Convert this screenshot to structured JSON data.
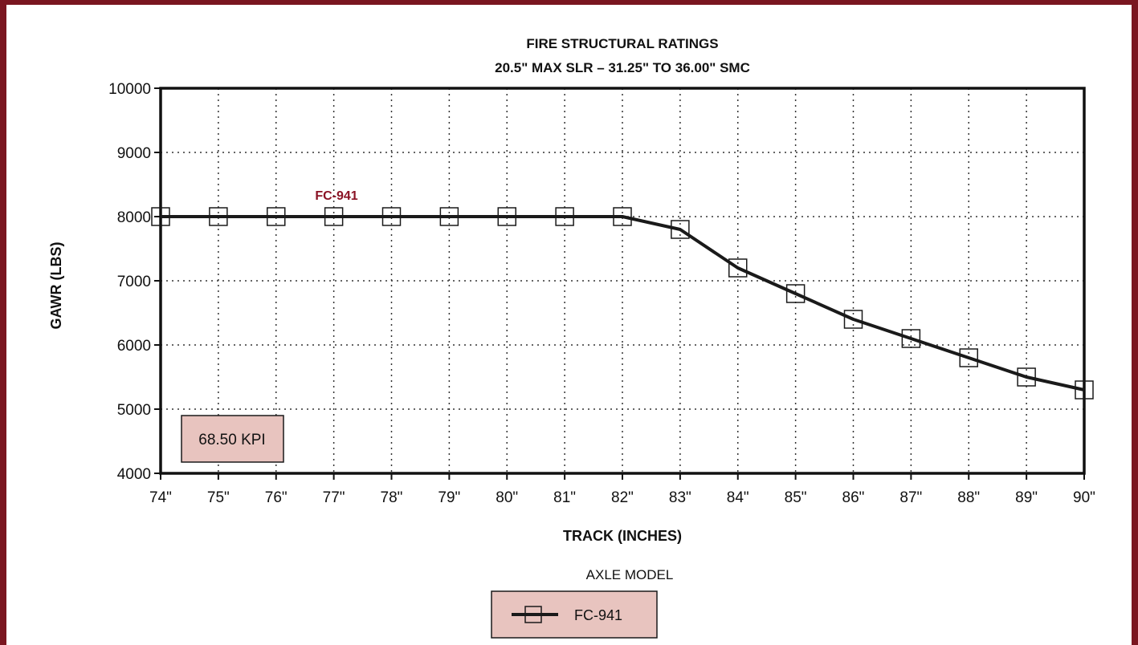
{
  "chart_data": {
    "type": "line",
    "title": "FIRE STRUCTURAL RATINGS",
    "subtitle": "20.5\" MAX SLR – 31.25\" TO 36.00\" SMC",
    "xlabel": "TRACK (INCHES)",
    "ylabel": "GAWR (LBS)",
    "x": [
      74,
      75,
      76,
      77,
      78,
      79,
      80,
      81,
      82,
      83,
      84,
      85,
      86,
      87,
      88,
      89,
      90
    ],
    "x_tick_labels": [
      "74\"",
      "75\"",
      "76\"",
      "77\"",
      "78\"",
      "79\"",
      "80\"",
      "81\"",
      "82\"",
      "83\"",
      "84\"",
      "85\"",
      "86\"",
      "87\"",
      "88\"",
      "89\"",
      "90\""
    ],
    "xlim": [
      74,
      90
    ],
    "ylim": [
      4000,
      10000
    ],
    "y_ticks": [
      4000,
      5000,
      6000,
      7000,
      8000,
      9000,
      10000
    ],
    "grid": true,
    "series": [
      {
        "name": "FC-941",
        "values": [
          8000,
          8000,
          8000,
          8000,
          8000,
          8000,
          8000,
          8000,
          8000,
          7800,
          7200,
          6800,
          6400,
          6100,
          5800,
          5500,
          5300
        ]
      }
    ],
    "series_label": "FC-941",
    "kpi_box": "68.50 KPI",
    "legend_title": "AXLE MODEL",
    "legend_entries": [
      "FC-941"
    ],
    "colors": {
      "frame": "#7a1620",
      "box_fill": "#e8c4bf",
      "series_label": "#8a1224",
      "line": "#1a1a1a"
    }
  }
}
